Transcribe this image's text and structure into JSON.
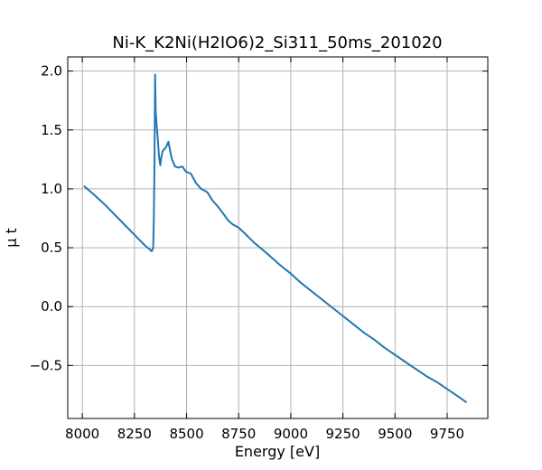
{
  "chart_data": {
    "type": "line",
    "title": "Ni-K_K2Ni(H2IO6)2_Si311_50ms_201020",
    "xlabel": "Energy [eV]",
    "ylabel": "μ t",
    "xlim": [
      7930,
      9945
    ],
    "ylim": [
      -0.95,
      2.12
    ],
    "xticks": [
      8000,
      8250,
      8500,
      8750,
      9000,
      9250,
      9500,
      9750
    ],
    "yticks": [
      -0.5,
      0.0,
      0.5,
      1.0,
      1.5,
      2.0
    ],
    "xtick_labels": [
      "8000",
      "8250",
      "8500",
      "8750",
      "9000",
      "9250",
      "9500",
      "9750"
    ],
    "ytick_labels": [
      "−0.5",
      "0.0",
      "0.5",
      "1.0",
      "1.5",
      "2.0"
    ],
    "grid": true,
    "series": [
      {
        "color": "#1f77b4",
        "x": [
          8010,
          8050,
          8100,
          8150,
          8200,
          8250,
          8300,
          8320,
          8333,
          8340,
          8343,
          8346,
          8349,
          8352,
          8356,
          8362,
          8368,
          8374,
          8378,
          8385,
          8400,
          8413,
          8420,
          8430,
          8445,
          8460,
          8480,
          8495,
          8505,
          8520,
          8545,
          8570,
          8600,
          8625,
          8650,
          8680,
          8700,
          8720,
          8750,
          8780,
          8820,
          8860,
          8900,
          8950,
          9000,
          9050,
          9100,
          9150,
          9200,
          9250,
          9300,
          9350,
          9400,
          9450,
          9500,
          9550,
          9600,
          9650,
          9700,
          9750,
          9800,
          9840
        ],
        "y": [
          1.02,
          0.96,
          0.88,
          0.79,
          0.7,
          0.61,
          0.52,
          0.49,
          0.47,
          0.5,
          0.75,
          1.2,
          1.97,
          1.65,
          1.55,
          1.42,
          1.27,
          1.2,
          1.26,
          1.32,
          1.35,
          1.4,
          1.33,
          1.25,
          1.19,
          1.18,
          1.19,
          1.15,
          1.14,
          1.13,
          1.05,
          1.0,
          0.97,
          0.9,
          0.85,
          0.78,
          0.73,
          0.7,
          0.67,
          0.62,
          0.55,
          0.49,
          0.43,
          0.35,
          0.28,
          0.2,
          0.13,
          0.06,
          -0.01,
          -0.08,
          -0.15,
          -0.22,
          -0.28,
          -0.35,
          -0.41,
          -0.47,
          -0.53,
          -0.59,
          -0.64,
          -0.7,
          -0.76,
          -0.81
        ]
      }
    ]
  }
}
